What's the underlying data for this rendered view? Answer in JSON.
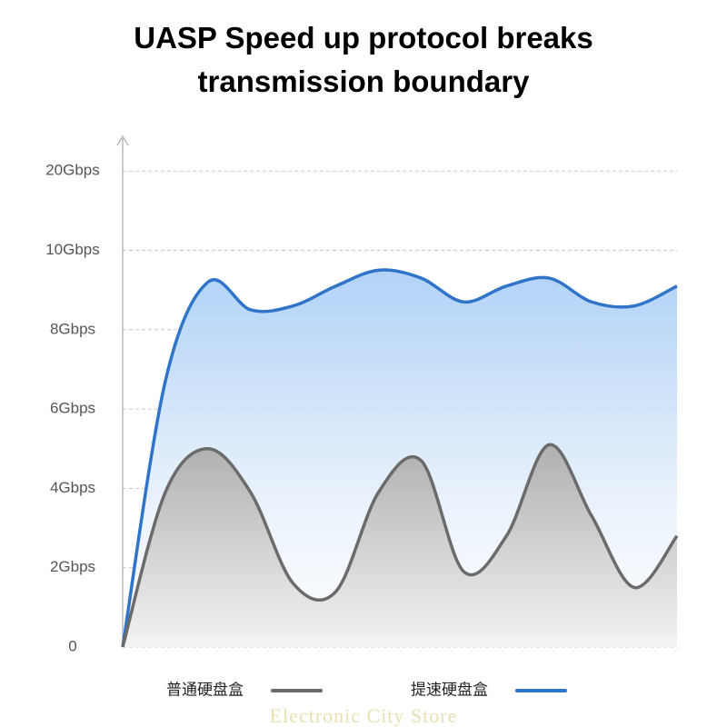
{
  "chart_data": {
    "type": "line",
    "title": "UASP Speed up protocol breaks transmission boundary",
    "categories": [
      null,
      null,
      null,
      null,
      null,
      null,
      null,
      null,
      null,
      null,
      null,
      null,
      null,
      null
    ],
    "series": [
      {
        "name": "普通硬盘盒",
        "color": "#6b6b6b",
        "values": [
          0,
          3.9,
          5.0,
          3.9,
          1.6,
          1.4,
          3.9,
          4.7,
          1.9,
          2.8,
          5.1,
          3.3,
          1.5,
          2.8
        ]
      },
      {
        "name": "提速硬盘盒",
        "color": "#2f74c8",
        "values": [
          0,
          6.7,
          9.2,
          8.5,
          8.6,
          9.1,
          9.5,
          9.3,
          8.7,
          9.1,
          9.3,
          8.7,
          8.6,
          9.1
        ]
      }
    ],
    "ylim": [
      0,
      20
    ],
    "yticks": [
      0,
      {
        "value": 2,
        "label": "2Gbps"
      },
      {
        "value": 4,
        "label": "4Gbps"
      },
      {
        "value": 6,
        "label": "6Gbps"
      },
      {
        "value": 8,
        "label": "8Gbps"
      },
      {
        "value": 10,
        "label": "10Gbps"
      },
      {
        "value": 20,
        "label": "20Gbps"
      }
    ],
    "grid": true,
    "legend": "bottom",
    "watermark": "Electronic City Store"
  }
}
